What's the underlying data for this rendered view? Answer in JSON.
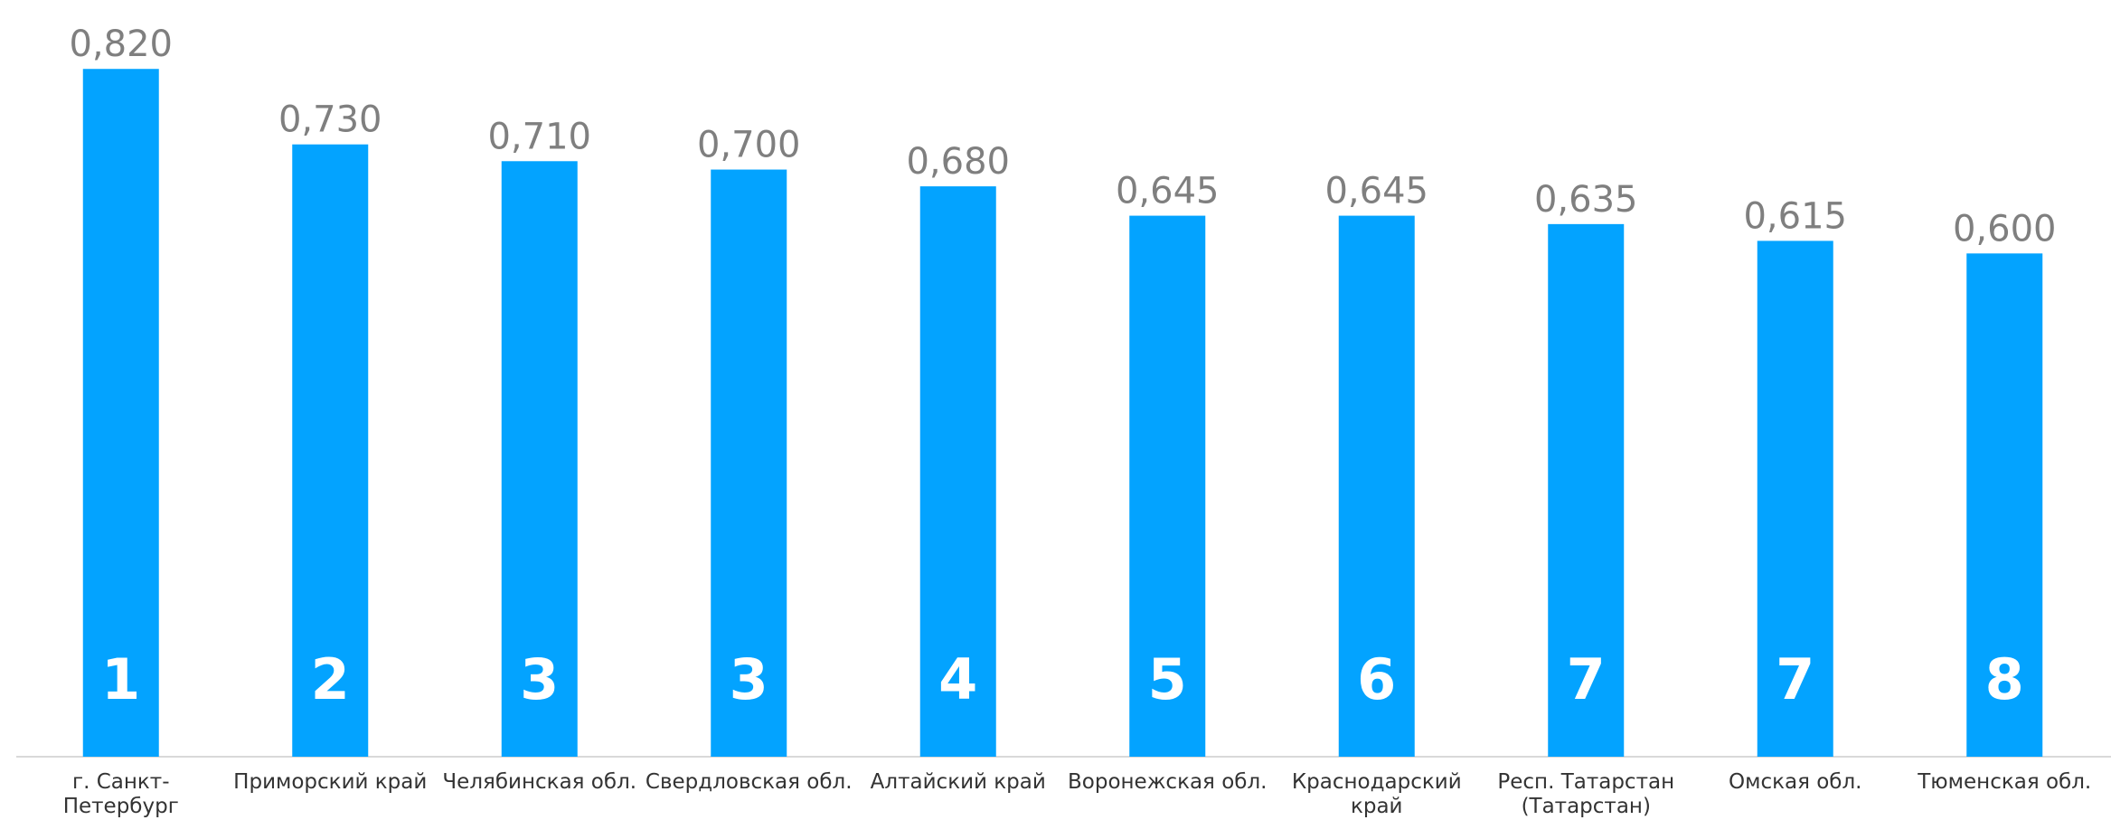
{
  "chart_data": {
    "type": "bar",
    "categories": [
      "г. Санкт-Петербург",
      "Приморский край",
      "Челябинская обл.",
      "Свердловская обл.",
      "Алтайский край",
      "Воронежская обл.",
      "Краснодарский край",
      "Респ. Татарстан (Татарстан)",
      "Омская обл.",
      "Тюменская обл."
    ],
    "values": [
      0.82,
      0.73,
      0.71,
      0.7,
      0.68,
      0.645,
      0.645,
      0.635,
      0.615,
      0.6
    ],
    "value_labels": [
      "0,820",
      "0,730",
      "0,710",
      "0,700",
      "0,680",
      "0,645",
      "0,645",
      "0,635",
      "0,615",
      "0,600"
    ],
    "ranks": [
      1,
      2,
      3,
      3,
      4,
      5,
      6,
      7,
      7,
      8
    ],
    "color": "#03a3ff",
    "ylim": [
      0,
      0.9
    ]
  }
}
